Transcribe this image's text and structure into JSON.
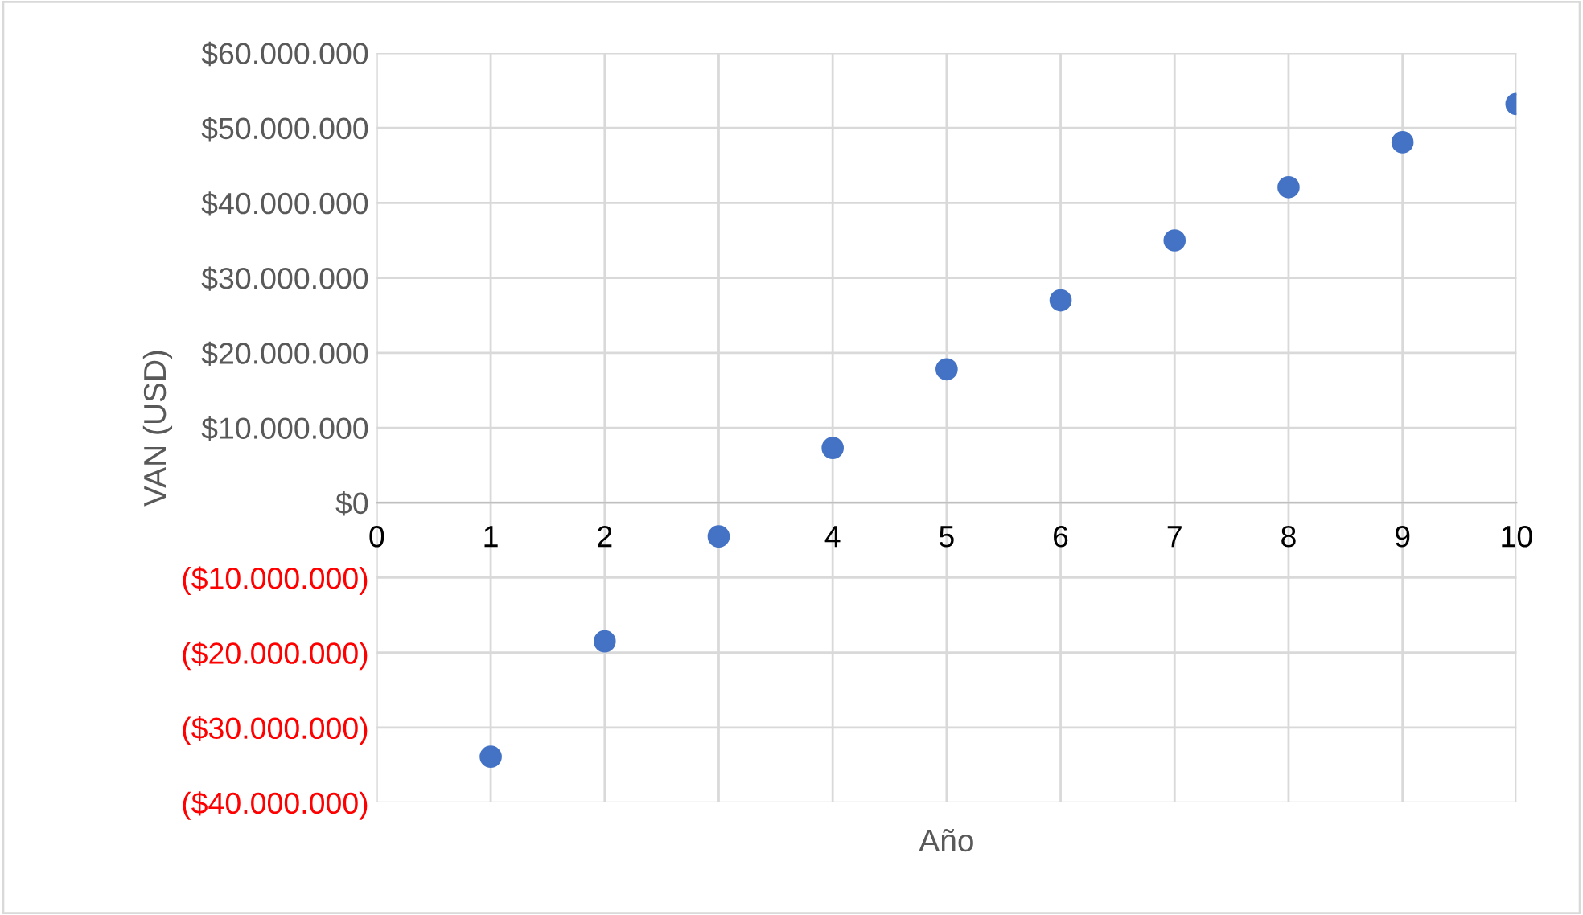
{
  "chart_data": {
    "type": "scatter",
    "xlabel": "Año",
    "ylabel": "VAN (USD)",
    "x": [
      1,
      2,
      3,
      4,
      5,
      6,
      7,
      8,
      9,
      10
    ],
    "series": [
      {
        "color": "#4472c4",
        "values": [
          -33900000,
          -18500000,
          -4500000,
          7300000,
          17800000,
          27000000,
          35000000,
          42100000,
          48100000,
          53200000
        ]
      }
    ],
    "xlim": [
      0,
      10
    ],
    "xticks": [
      0,
      1,
      2,
      3,
      4,
      5,
      6,
      7,
      8,
      9,
      10
    ],
    "ylim": [
      -40000000,
      60000000
    ],
    "yticks": [
      {
        "value": -40000000,
        "label": "($40.000.000)"
      },
      {
        "value": -30000000,
        "label": "($30.000.000)"
      },
      {
        "value": -20000000,
        "label": "($20.000.000)"
      },
      {
        "value": -10000000,
        "label": "($10.000.000)"
      },
      {
        "value": 0,
        "label": "$0"
      },
      {
        "value": 10000000,
        "label": "$10.000.000"
      },
      {
        "value": 20000000,
        "label": "$20.000.000"
      },
      {
        "value": 30000000,
        "label": "$30.000.000"
      },
      {
        "value": 40000000,
        "label": "$40.000.000"
      },
      {
        "value": 50000000,
        "label": "$50.000.000"
      },
      {
        "value": 60000000,
        "label": "$60.000.000"
      }
    ],
    "grid": true,
    "marker": "circle",
    "legend": false
  }
}
